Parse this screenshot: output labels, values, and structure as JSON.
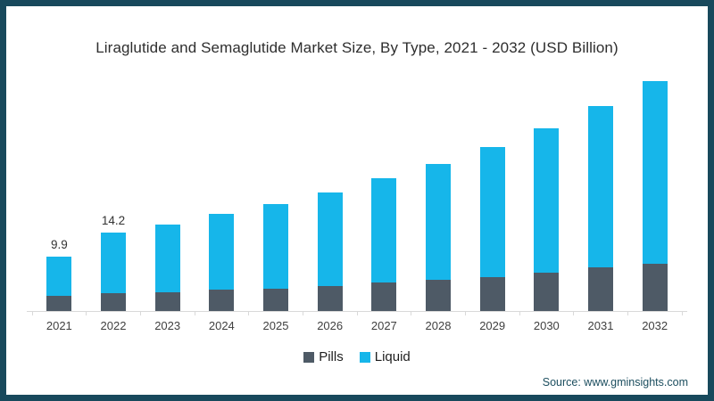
{
  "page": {
    "frame_color": "#18495C",
    "background": "#FFFFFF"
  },
  "chart_data": {
    "type": "bar",
    "stacked": true,
    "title": "Liraglutide and Semaglutide Market Size, By Type, 2021 - 2032 (USD Billion)",
    "unit": "USD Billion",
    "categories": [
      "2021",
      "2022",
      "2023",
      "2024",
      "2025",
      "2026",
      "2027",
      "2028",
      "2029",
      "2030",
      "2031",
      "2032"
    ],
    "series": [
      {
        "name": "Pills",
        "color": "#4E5A66",
        "values": [
          2.8,
          3.3,
          3.4,
          3.8,
          4.0,
          4.5,
          5.1,
          5.7,
          6.2,
          7.0,
          7.9,
          8.6
        ]
      },
      {
        "name": "Liquid",
        "color": "#16B6EA",
        "values": [
          7.1,
          10.9,
          12.3,
          13.7,
          15.3,
          17.0,
          18.9,
          21.0,
          23.5,
          26.2,
          29.2,
          33.0
        ]
      }
    ],
    "totals": [
      9.9,
      14.2,
      15.7,
      17.5,
      19.3,
      21.5,
      24.0,
      26.7,
      29.7,
      33.2,
      37.1,
      41.6
    ],
    "bar_labels": [
      "9.9",
      "14.2",
      "",
      "",
      "",
      "",
      "",
      "",
      "",
      "",
      "",
      ""
    ],
    "ylim": [
      0,
      43
    ],
    "grid": false,
    "legend_position": "bottom",
    "axis_color": "#D9D9D9",
    "label_color": "#333333"
  },
  "source": {
    "text": "Source: www.gminsights.com",
    "color": "#1C4E5F"
  }
}
